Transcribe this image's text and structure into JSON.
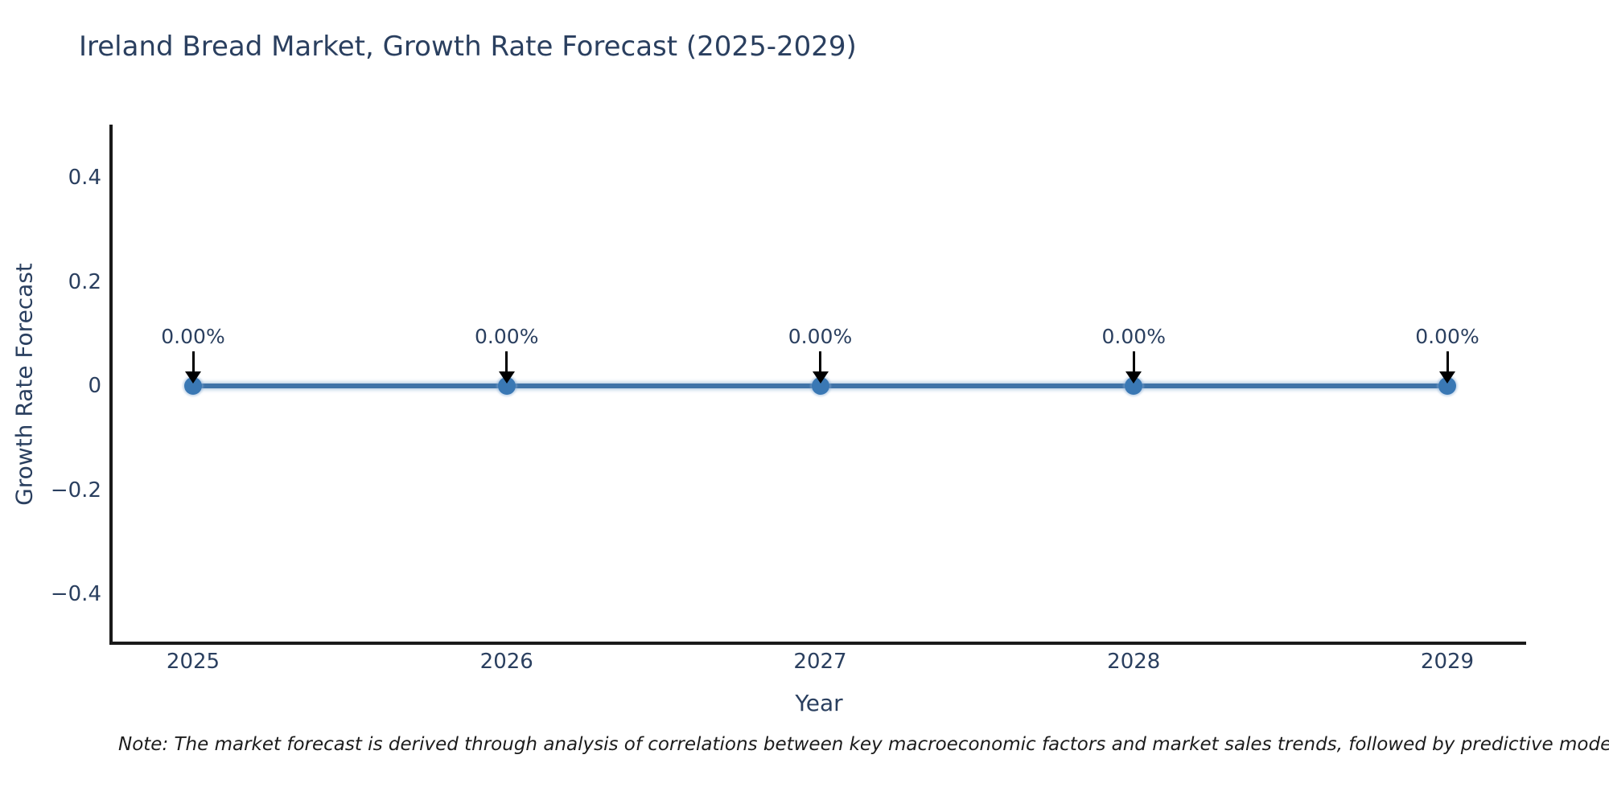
{
  "note": "Note: The market forecast is derived through analysis of correlations between key macroeconomic factors and market sales trends, followed by predictive modeling to project future sa",
  "chart_data": {
    "type": "line",
    "title": "Ireland Bread Market, Growth Rate Forecast (2025-2029)",
    "xlabel": "Year",
    "ylabel": "Growth Rate Forecast",
    "x": [
      2025,
      2026,
      2027,
      2028,
      2029
    ],
    "series": [
      {
        "name": "Growth Rate Forecast",
        "values": [
          0,
          0,
          0,
          0,
          0
        ]
      }
    ],
    "point_labels": [
      "0.00%",
      "0.00%",
      "0.00%",
      "0.00%",
      "0.00%"
    ],
    "yticks": [
      0.4,
      0.2,
      0,
      -0.2,
      -0.4
    ],
    "ytick_labels": [
      "0.4",
      "0.2",
      "0",
      "−0.2",
      "−0.4"
    ],
    "ylim": [
      -0.5,
      0.5
    ],
    "grid": false,
    "legend": false,
    "annotations_arrow": true,
    "colors": {
      "line": "#3f73a8",
      "marker": "#3a78b4",
      "text": "#2a3f5f",
      "axis": "#1a1a1a",
      "arrow": "#000000",
      "background": "#ffffff"
    }
  }
}
